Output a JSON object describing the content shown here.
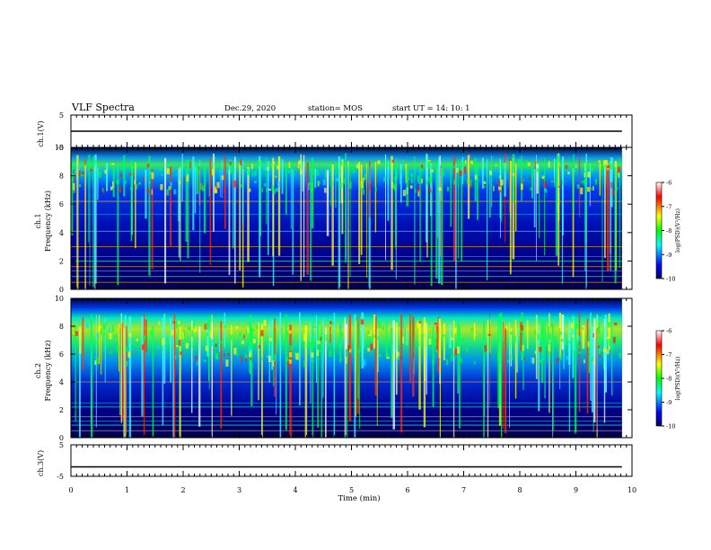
{
  "header": {
    "title": "VLF Spectra",
    "date": "Dec.29, 2020",
    "station": "station= MOS",
    "start": "start  UT =   14: 10: 1"
  },
  "chart_data": [
    {
      "type": "line",
      "panel": "ch1-voltage",
      "ylabel": "ch.1(V)",
      "ylim": [
        -5,
        5
      ],
      "yticks": [
        5,
        -5
      ],
      "series": [
        {
          "x": [
            0,
            9.82
          ],
          "y": [
            0,
            0
          ]
        }
      ]
    },
    {
      "type": "heatmap",
      "panel": "ch1-spectrogram",
      "ylabel_channel": "ch.1",
      "ylabel": "Frequency (kHz)",
      "ylim": [
        0,
        10
      ],
      "yticks": [
        0,
        2,
        4,
        6,
        8,
        10
      ],
      "colorbar": {
        "label": "log(PSD)(V²/Hz)",
        "range": [
          -10,
          -6
        ],
        "ticks": [
          -6,
          -7,
          -8,
          -9,
          -10
        ],
        "colors": [
          "#000060",
          "#0000ff",
          "#00ffff",
          "#00ff00",
          "#ffff00",
          "#ff0000",
          "#ffffff"
        ]
      }
    },
    {
      "type": "heatmap",
      "panel": "ch2-spectrogram",
      "ylabel_channel": "ch.2",
      "ylabel": "Frequency (kHz)",
      "ylim": [
        0,
        10
      ],
      "yticks": [
        0,
        2,
        4,
        6,
        8,
        10
      ],
      "colorbar": {
        "label": "log(PSD)(V²/Hz)",
        "range": [
          -10,
          -6
        ],
        "ticks": [
          -6,
          -7,
          -8,
          -9,
          -10
        ],
        "colors": [
          "#000060",
          "#0000ff",
          "#00ffff",
          "#00ff00",
          "#ffff00",
          "#ff0000",
          "#ffffff"
        ]
      }
    },
    {
      "type": "line",
      "panel": "ch3-voltage",
      "ylabel": "ch.3(V)",
      "ylim": [
        -5,
        5
      ],
      "yticks": [
        5,
        -5
      ],
      "series": [
        {
          "x": [
            0,
            9.82
          ],
          "y": [
            -2,
            -2
          ]
        }
      ]
    }
  ],
  "xaxis": {
    "label": "Time (min)",
    "xlim": [
      0,
      10
    ],
    "ticks": [
      "0",
      "1",
      "2",
      "3",
      "4",
      "5",
      "6",
      "7",
      "8",
      "9",
      "10"
    ]
  }
}
